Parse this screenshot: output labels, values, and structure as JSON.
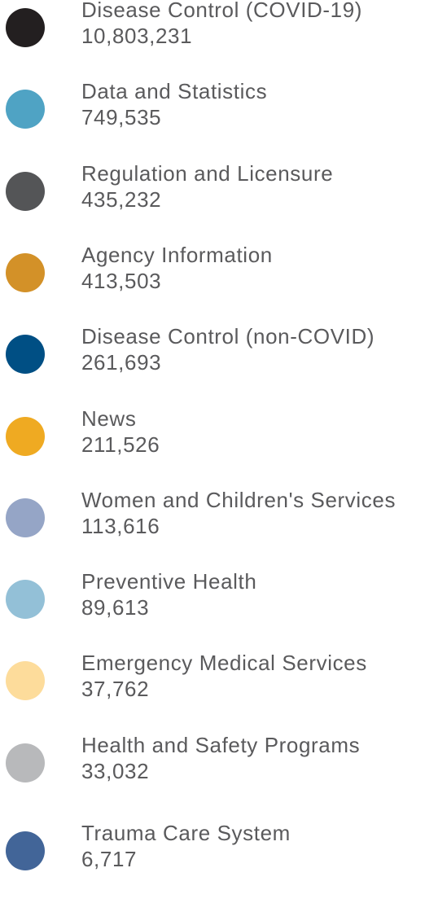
{
  "items": [
    {
      "label": "Disease Control (COVID-19)",
      "value": "10,803,231",
      "color": "#231f20"
    },
    {
      "label": "Data and Statistics",
      "value": "749,535",
      "color": "#4fa3c4"
    },
    {
      "label": "Regulation and Licensure",
      "value": "435,232",
      "color": "#545557"
    },
    {
      "label": "Agency Information",
      "value": "413,503",
      "color": "#d39128"
    },
    {
      "label": "Disease Control (non-COVID)",
      "value": "261,693",
      "color": "#004f84"
    },
    {
      "label": "News",
      "value": "211,526",
      "color": "#efaa22"
    },
    {
      "label": "Women and Children's Services",
      "value": "113,616",
      "color": "#95a5c6"
    },
    {
      "label": "Preventive Health",
      "value": "89,613",
      "color": "#93c0d7"
    },
    {
      "label": "Emergency Medical Services",
      "value": "37,762",
      "color": "#fddc9b"
    },
    {
      "label": "Health and Safety Programs",
      "value": "33,032",
      "color": "#b8b9bb"
    },
    {
      "label": "Trauma Care System",
      "value": "6,717",
      "color": "#426598"
    }
  ]
}
